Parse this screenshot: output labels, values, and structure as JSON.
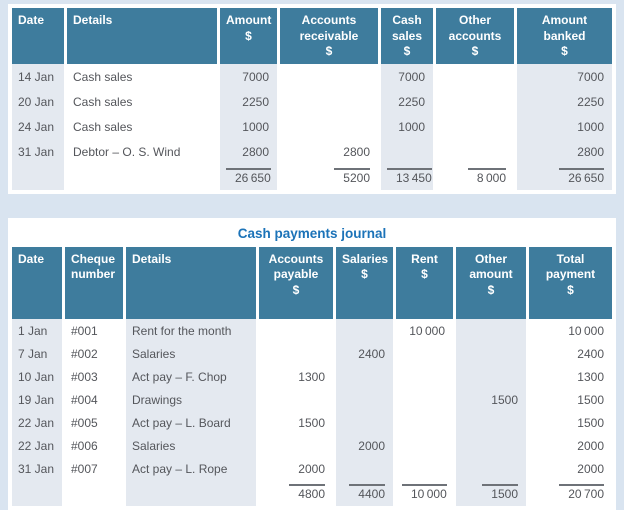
{
  "colors": {
    "frame": "#d9e4f0",
    "panel": "#ffffff",
    "header_bg": "#3e7c9d",
    "header_text": "#ffffff",
    "shade": "#e4e9f0",
    "text": "#54565b",
    "title": "#1c73b8",
    "total_line": "#6e7278"
  },
  "receipts_table": {
    "columns": [
      {
        "label": "Date",
        "unit": "",
        "align": "left"
      },
      {
        "label": "Details",
        "unit": "",
        "align": "left"
      },
      {
        "label": "Amount",
        "unit": "$",
        "align": "right"
      },
      {
        "label": "Accounts receivable",
        "unit": "$",
        "align": "right"
      },
      {
        "label": "Cash sales",
        "unit": "$",
        "align": "right"
      },
      {
        "label": "Other accounts",
        "unit": "$",
        "align": "right"
      },
      {
        "label": "Amount banked",
        "unit": "$",
        "align": "right"
      }
    ],
    "rows": [
      [
        "14 Jan",
        "Cash sales",
        "7000",
        "",
        "7000",
        "",
        "7000"
      ],
      [
        "20 Jan",
        "Cash sales",
        "2250",
        "",
        "2250",
        "",
        "2250"
      ],
      [
        "24 Jan",
        "Cash sales",
        "1000",
        "",
        "1000",
        "",
        "1000"
      ],
      [
        "31 Jan",
        "Debtor – O. S. Wind",
        "2800",
        "2800",
        "",
        "",
        "2800"
      ]
    ],
    "totals": [
      "",
      "",
      "26 650",
      "5200",
      "13 450",
      "8 000",
      "26 650"
    ]
  },
  "payments_table": {
    "title": "Cash payments journal",
    "columns": [
      {
        "label": "Date",
        "unit": "",
        "align": "left"
      },
      {
        "label": "Cheque number",
        "unit": "",
        "align": "left"
      },
      {
        "label": "Details",
        "unit": "",
        "align": "left"
      },
      {
        "label": "Accounts payable",
        "unit": "$",
        "align": "right"
      },
      {
        "label": "Salaries",
        "unit": "$",
        "align": "right"
      },
      {
        "label": "Rent",
        "unit": "$",
        "align": "right"
      },
      {
        "label": "Other amount",
        "unit": "$",
        "align": "right"
      },
      {
        "label": "Total payment",
        "unit": "$",
        "align": "right"
      }
    ],
    "rows": [
      [
        "1 Jan",
        "#001",
        "Rent for the month",
        "",
        "",
        "10 000",
        "",
        "10 000"
      ],
      [
        "7 Jan",
        "#002",
        "Salaries",
        "",
        "2400",
        "",
        "",
        "2400"
      ],
      [
        "10 Jan",
        "#003",
        "Act pay – F. Chop",
        "1300",
        "",
        "",
        "",
        "1300"
      ],
      [
        "19 Jan",
        "#004",
        "Drawings",
        "",
        "",
        "",
        "1500",
        "1500"
      ],
      [
        "22 Jan",
        "#005",
        "Act pay – L. Board",
        "1500",
        "",
        "",
        "",
        "1500"
      ],
      [
        "22 Jan",
        "#006",
        "Salaries",
        "",
        "2000",
        "",
        "",
        "2000"
      ],
      [
        "31 Jan",
        "#007",
        "Act pay – L. Rope",
        "2000",
        "",
        "",
        "",
        "2000"
      ]
    ],
    "totals": [
      "",
      "",
      "",
      "4800",
      "4400",
      "10 000",
      "1500",
      "20 700"
    ]
  }
}
